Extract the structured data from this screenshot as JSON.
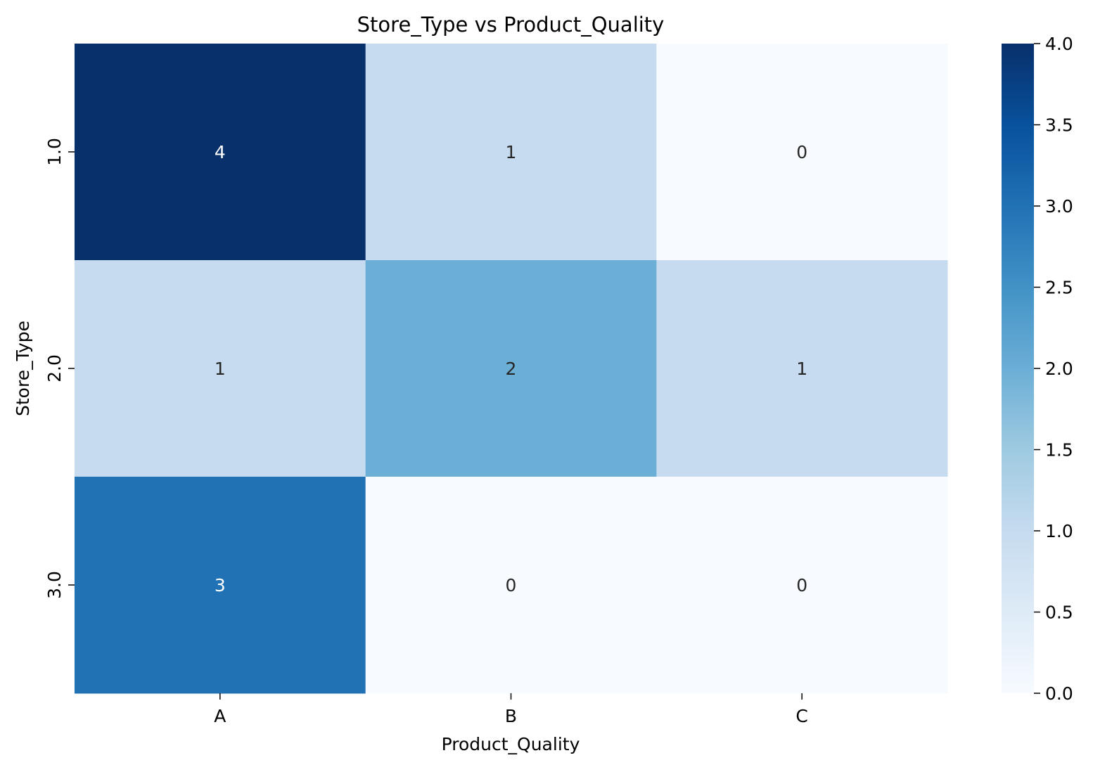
{
  "chart_data": {
    "type": "heatmap",
    "title": "Store_Type vs Product_Quality",
    "xlabel": "Product_Quality",
    "ylabel": "Store_Type",
    "x_categories": [
      "A",
      "B",
      "C"
    ],
    "y_categories": [
      "1.0",
      "2.0",
      "3.0"
    ],
    "values": [
      [
        4,
        1,
        0
      ],
      [
        1,
        2,
        1
      ],
      [
        3,
        0,
        0
      ]
    ],
    "annotations": [
      [
        "4",
        "1",
        "0"
      ],
      [
        "1",
        "2",
        "1"
      ],
      [
        "3",
        "0",
        "0"
      ]
    ],
    "colorbar": {
      "min": 0.0,
      "max": 4.0,
      "ticks": [
        "0.0",
        "0.5",
        "1.0",
        "1.5",
        "2.0",
        "2.5",
        "3.0",
        "3.5",
        "4.0"
      ],
      "colormap": "Blues"
    },
    "grid": false
  },
  "colors": {
    "text_dark": "#262626",
    "text_light": "#ffffff",
    "axis": "#000000",
    "blues": [
      "#f7fbff",
      "#deebf7",
      "#c6dbef",
      "#9ecae1",
      "#6baed6",
      "#4292c6",
      "#2171b5",
      "#08519c",
      "#08306b"
    ]
  }
}
